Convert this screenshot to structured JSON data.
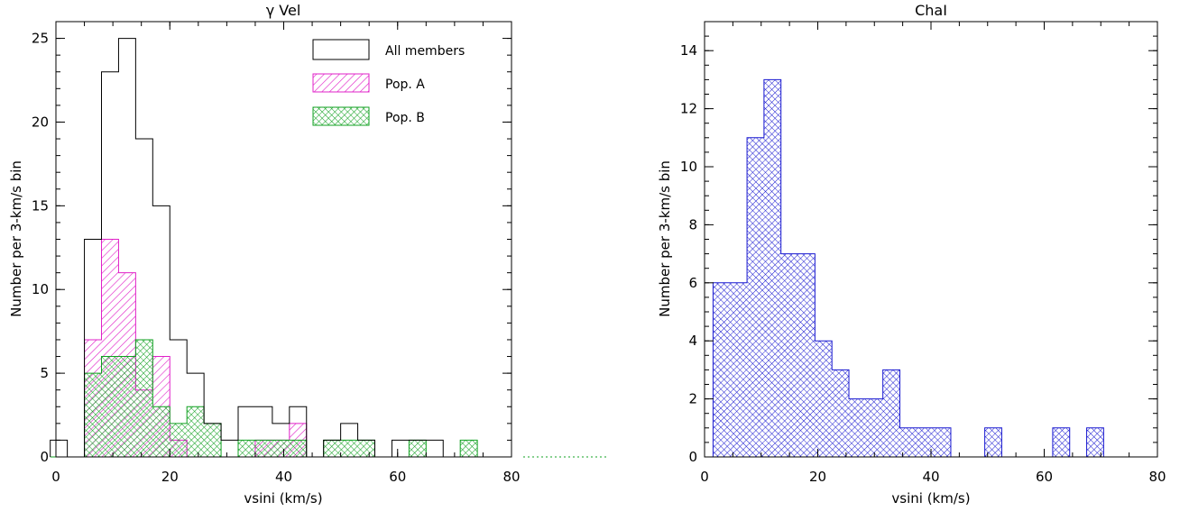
{
  "chart_data": [
    {
      "type": "bar",
      "title": "γ Vel",
      "xlabel": "vsini (km/s)",
      "ylabel": "Number per 3-km/s bin",
      "xlim": [
        0,
        80
      ],
      "ylim": [
        0,
        26
      ],
      "xticks": [
        "0",
        "20",
        "40",
        "60",
        "80"
      ],
      "yticks": [
        "0",
        "5",
        "10",
        "15",
        "20",
        "25"
      ],
      "xtick_values": [
        0,
        20,
        40,
        60,
        80
      ],
      "ytick_values": [
        0,
        5,
        10,
        15,
        20,
        25
      ],
      "bin_width": 3,
      "bin_starts": [
        -1,
        2,
        5,
        8,
        11,
        14,
        17,
        20,
        23,
        26,
        29,
        32,
        35,
        38,
        41,
        44,
        47,
        50,
        53,
        56,
        59,
        62,
        65,
        68,
        71,
        74,
        77
      ],
      "legend_position": "top-right",
      "series": [
        {
          "name": "All members",
          "fill": "none",
          "color": "#000000",
          "values": [
            1,
            0,
            13,
            23,
            25,
            19,
            15,
            7,
            5,
            2,
            1,
            3,
            3,
            2,
            3,
            0,
            1,
            2,
            1,
            0,
            1,
            1,
            1,
            0,
            0,
            0,
            0
          ]
        },
        {
          "name": "Pop. A",
          "fill": "hatch",
          "color": "#e020c8",
          "values": [
            0,
            0,
            7,
            13,
            11,
            4,
            6,
            1,
            0,
            0,
            0,
            0,
            1,
            1,
            2,
            0,
            0,
            0,
            0,
            0,
            0,
            0,
            0,
            0,
            0,
            0,
            0
          ]
        },
        {
          "name": "Pop. B",
          "fill": "crosshatch",
          "color": "#10a020",
          "values": [
            0,
            0,
            5,
            6,
            6,
            7,
            3,
            2,
            3,
            2,
            0,
            1,
            1,
            1,
            1,
            0,
            1,
            1,
            1,
            0,
            0,
            1,
            0,
            0,
            1,
            0,
            0
          ]
        }
      ]
    },
    {
      "type": "bar",
      "title": "ChaI",
      "xlabel": "vsini (km/s)",
      "ylabel": "Number per 3-km/s bin",
      "xlim": [
        0,
        80
      ],
      "ylim": [
        0,
        15
      ],
      "xticks": [
        "0",
        "20",
        "40",
        "60",
        "80"
      ],
      "yticks": [
        "0",
        "2",
        "4",
        "6",
        "8",
        "10",
        "12",
        "14"
      ],
      "xtick_values": [
        0,
        20,
        40,
        60,
        80
      ],
      "ytick_values": [
        0,
        2,
        4,
        6,
        8,
        10,
        12,
        14
      ],
      "bin_width": 3,
      "bin_starts": [
        1.5,
        4.5,
        7.5,
        10.5,
        13.5,
        16.5,
        19.5,
        22.5,
        25.5,
        28.5,
        31.5,
        34.5,
        37.5,
        40.5,
        43.5,
        46.5,
        49.5,
        52.5,
        55.5,
        58.5,
        61.5,
        64.5,
        67.5
      ],
      "series": [
        {
          "fill": "crosshatch",
          "color": "#1818d0",
          "values": [
            6,
            6,
            11,
            13,
            7,
            7,
            4,
            3,
            2,
            2,
            3,
            1,
            1,
            1,
            0,
            0,
            1,
            0,
            0,
            0,
            1,
            0,
            1
          ]
        }
      ]
    }
  ]
}
